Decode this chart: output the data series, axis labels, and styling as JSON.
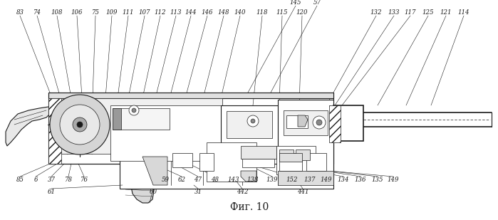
{
  "figure_caption": "Фиг. 10",
  "background_color": "#ffffff",
  "figsize": [
    6.99,
    3.09
  ],
  "dpi": 100,
  "top_labels_row1": [
    [
      "145",
      0.44
    ],
    [
      "57",
      0.472
    ]
  ],
  "top_labels_row2": [
    [
      "83",
      0.04
    ],
    [
      "74",
      0.068
    ],
    [
      "108",
      0.098
    ],
    [
      "106",
      0.128
    ],
    [
      "75",
      0.155
    ],
    [
      "109",
      0.178
    ],
    [
      "111",
      0.2
    ],
    [
      "107",
      0.222
    ],
    [
      "112",
      0.243
    ],
    [
      "113",
      0.263
    ],
    [
      "144",
      0.283
    ],
    [
      "146",
      0.305
    ],
    [
      "148",
      0.326
    ],
    [
      "140",
      0.347
    ],
    [
      "118",
      0.38
    ],
    [
      "115",
      0.408
    ],
    [
      "120",
      0.436
    ],
    [
      "132",
      0.543
    ],
    [
      "133",
      0.568
    ],
    [
      "117",
      0.591
    ],
    [
      "125",
      0.618
    ],
    [
      "121",
      0.642
    ],
    [
      "114",
      0.668
    ]
  ],
  "bottom_labels_row1": [
    [
      "85",
      0.04
    ],
    [
      "6",
      0.062
    ],
    [
      "37",
      0.085
    ],
    [
      "78",
      0.108
    ],
    [
      "76",
      0.128
    ],
    [
      "59",
      0.268
    ],
    [
      "62",
      0.29
    ],
    [
      "47",
      0.314
    ],
    [
      "48",
      0.338
    ],
    [
      "143",
      0.362
    ],
    [
      "138",
      0.388
    ],
    [
      "139",
      0.414
    ],
    [
      "152",
      0.442
    ],
    [
      "137",
      0.465
    ],
    [
      "149",
      0.488
    ],
    [
      "134",
      0.512
    ],
    [
      "136",
      0.535
    ],
    [
      "135",
      0.558
    ],
    [
      "149",
      0.578
    ]
  ],
  "bottom_labels_row2": [
    [
      "61",
      0.082
    ],
    [
      "60",
      0.248
    ],
    [
      "31",
      0.31
    ],
    [
      "442",
      0.368
    ],
    [
      "441",
      0.452
    ]
  ],
  "line_color": "#1a1a1a",
  "text_color": "#1a1a1a",
  "font_size": 6.0,
  "caption_font_size": 10
}
